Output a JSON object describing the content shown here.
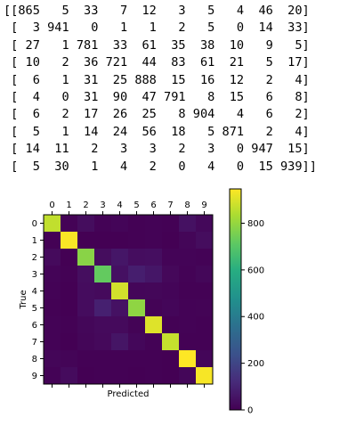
{
  "printed_matrix": [
    [
      865,
      5,
      33,
      7,
      12,
      3,
      5,
      4,
      46,
      20
    ],
    [
      3,
      941,
      0,
      1,
      1,
      2,
      5,
      0,
      14,
      33
    ],
    [
      27,
      1,
      781,
      33,
      61,
      35,
      38,
      10,
      9,
      5
    ],
    [
      10,
      2,
      36,
      721,
      44,
      83,
      61,
      21,
      5,
      17
    ],
    [
      6,
      1,
      31,
      25,
      888,
      15,
      16,
      12,
      2,
      4
    ],
    [
      4,
      0,
      31,
      90,
      47,
      791,
      8,
      15,
      6,
      8
    ],
    [
      6,
      2,
      17,
      26,
      25,
      8,
      904,
      4,
      6,
      2
    ],
    [
      5,
      1,
      14,
      24,
      56,
      18,
      5,
      871,
      2,
      4
    ],
    [
      14,
      11,
      2,
      3,
      3,
      2,
      3,
      0,
      947,
      15
    ],
    [
      5,
      30,
      1,
      4,
      2,
      0,
      4,
      0,
      15,
      939
    ]
  ],
  "chart_data": {
    "type": "heatmap",
    "title": "",
    "xlabel": "Predicted",
    "ylabel": "True",
    "x_categories": [
      "0",
      "1",
      "2",
      "3",
      "4",
      "5",
      "6",
      "7",
      "8",
      "9"
    ],
    "y_categories": [
      "0",
      "1",
      "2",
      "3",
      "4",
      "5",
      "6",
      "7",
      "8",
      "9"
    ],
    "values": [
      [
        865,
        5,
        33,
        7,
        12,
        3,
        5,
        4,
        46,
        20
      ],
      [
        3,
        941,
        0,
        1,
        1,
        2,
        5,
        0,
        14,
        33
      ],
      [
        27,
        1,
        781,
        33,
        61,
        35,
        38,
        10,
        9,
        5
      ],
      [
        10,
        2,
        36,
        721,
        44,
        83,
        61,
        21,
        5,
        17
      ],
      [
        6,
        1,
        31,
        25,
        888,
        15,
        16,
        12,
        2,
        4
      ],
      [
        4,
        0,
        31,
        90,
        47,
        791,
        8,
        15,
        6,
        8
      ],
      [
        6,
        2,
        17,
        26,
        25,
        8,
        904,
        4,
        6,
        2
      ],
      [
        5,
        1,
        14,
        24,
        56,
        18,
        5,
        871,
        2,
        4
      ],
      [
        14,
        11,
        2,
        3,
        3,
        2,
        3,
        0,
        947,
        15
      ],
      [
        5,
        30,
        1,
        4,
        2,
        0,
        4,
        0,
        15,
        939
      ]
    ],
    "colormap": "viridis",
    "x_tick_position": "top",
    "colorbar": {
      "range": [
        0,
        947
      ],
      "ticks": [
        0,
        200,
        400,
        600,
        800
      ]
    },
    "grid": false
  }
}
